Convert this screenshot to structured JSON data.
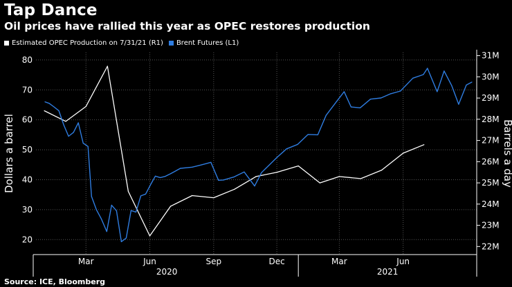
{
  "title": "Tap Dance",
  "subtitle": "Oil prices have rallied this year as OPEC restores production",
  "source": "Source: ICE, Bloomberg",
  "colors": {
    "background": "#000000",
    "brent": "#2f7de1",
    "opec": "#ffffff",
    "grid": "#555555"
  },
  "chart_data": {
    "type": "line",
    "grid": true,
    "legend_placement": "top-left",
    "series": [
      {
        "name": "Estimated OPEC Production on 7/31/21 (R1)",
        "axis": "right",
        "color": "#ffffff",
        "x": [
          "2020-01-01",
          "2020-02-01",
          "2020-03-01",
          "2020-04-01",
          "2020-05-01",
          "2020-06-01",
          "2020-07-01",
          "2020-08-01",
          "2020-09-01",
          "2020-10-01",
          "2020-11-01",
          "2020-12-01",
          "2021-01-01",
          "2021-02-01",
          "2021-03-01",
          "2021-04-01",
          "2021-05-01",
          "2021-06-01",
          "2021-07-01"
        ],
        "values": [
          28.4,
          27.9,
          28.6,
          30.5,
          24.6,
          22.5,
          23.9,
          24.4,
          24.3,
          24.7,
          25.3,
          25.5,
          25.8,
          25.0,
          25.3,
          25.2,
          25.6,
          26.4,
          26.8
        ]
      },
      {
        "name": "Brent Futures (L1)",
        "axis": "left",
        "color": "#2f7de1",
        "x": [
          "2020-01-02",
          "2020-01-08",
          "2020-01-15",
          "2020-01-22",
          "2020-01-29",
          "2020-02-05",
          "2020-02-12",
          "2020-02-19",
          "2020-02-26",
          "2020-03-04",
          "2020-03-09",
          "2020-03-16",
          "2020-03-23",
          "2020-03-31",
          "2020-04-07",
          "2020-04-14",
          "2020-04-21",
          "2020-04-28",
          "2020-05-05",
          "2020-05-12",
          "2020-05-19",
          "2020-05-26",
          "2020-06-02",
          "2020-06-09",
          "2020-06-16",
          "2020-06-23",
          "2020-07-01",
          "2020-07-15",
          "2020-08-01",
          "2020-08-15",
          "2020-08-28",
          "2020-09-08",
          "2020-09-15",
          "2020-09-30",
          "2020-10-15",
          "2020-10-30",
          "2020-11-09",
          "2020-11-20",
          "2020-12-01",
          "2020-12-15",
          "2020-12-31",
          "2021-01-15",
          "2021-01-29",
          "2021-02-10",
          "2021-02-25",
          "2021-03-08",
          "2021-03-18",
          "2021-03-31",
          "2021-04-15",
          "2021-04-30",
          "2021-05-14",
          "2021-05-28",
          "2021-06-15",
          "2021-06-30",
          "2021-07-06",
          "2021-07-20",
          "2021-07-30",
          "2021-08-10",
          "2021-08-20",
          "2021-08-31",
          "2021-09-08"
        ],
        "values": [
          66.0,
          65.5,
          64.3,
          63.0,
          58.3,
          54.5,
          55.8,
          59.0,
          52.2,
          51.1,
          34.4,
          30.0,
          27.0,
          22.7,
          31.5,
          29.6,
          19.3,
          20.5,
          29.7,
          29.2,
          34.6,
          35.2,
          38.3,
          41.2,
          40.7,
          41.1,
          42.0,
          43.8,
          44.2,
          45.0,
          45.8,
          39.8,
          39.9,
          40.9,
          42.6,
          37.9,
          42.4,
          44.9,
          47.4,
          50.3,
          51.8,
          55.1,
          55.0,
          61.5,
          66.1,
          69.4,
          64.3,
          64.0,
          66.9,
          67.3,
          68.7,
          69.6,
          73.9,
          75.1,
          77.2,
          69.4,
          76.3,
          71.4,
          65.2,
          71.6,
          72.6
        ]
      }
    ],
    "y_left": {
      "title": "Dollars a barrel",
      "ticks": [
        20,
        30,
        40,
        50,
        60,
        70,
        80
      ],
      "range": [
        15,
        82.5
      ]
    },
    "y_right": {
      "title": "Barrels a day",
      "ticks": [
        22,
        23,
        24,
        25,
        26,
        27,
        28,
        29,
        30,
        31
      ],
      "tick_labels": [
        "22M",
        "23M",
        "24M",
        "25M",
        "26M",
        "27M",
        "28M",
        "29M",
        "30M",
        "31M"
      ],
      "range": [
        21.62,
        31.15
      ]
    },
    "x_axis": {
      "range": [
        "2019-12-20",
        "2021-09-15"
      ],
      "ticks": [
        {
          "date": "2020-03-01",
          "label": "Mar"
        },
        {
          "date": "2020-06-01",
          "label": "Jun"
        },
        {
          "date": "2020-09-01",
          "label": "Sep"
        },
        {
          "date": "2020-12-01",
          "label": "Dec"
        },
        {
          "date": "2021-03-01",
          "label": "Mar"
        },
        {
          "date": "2021-06-01",
          "label": "Jun"
        }
      ],
      "year_labels": [
        {
          "year": "2020",
          "from": "2019-12-20",
          "to": "2020-12-31"
        },
        {
          "year": "2021",
          "from": "2021-01-01",
          "to": "2021-09-15"
        }
      ]
    }
  }
}
